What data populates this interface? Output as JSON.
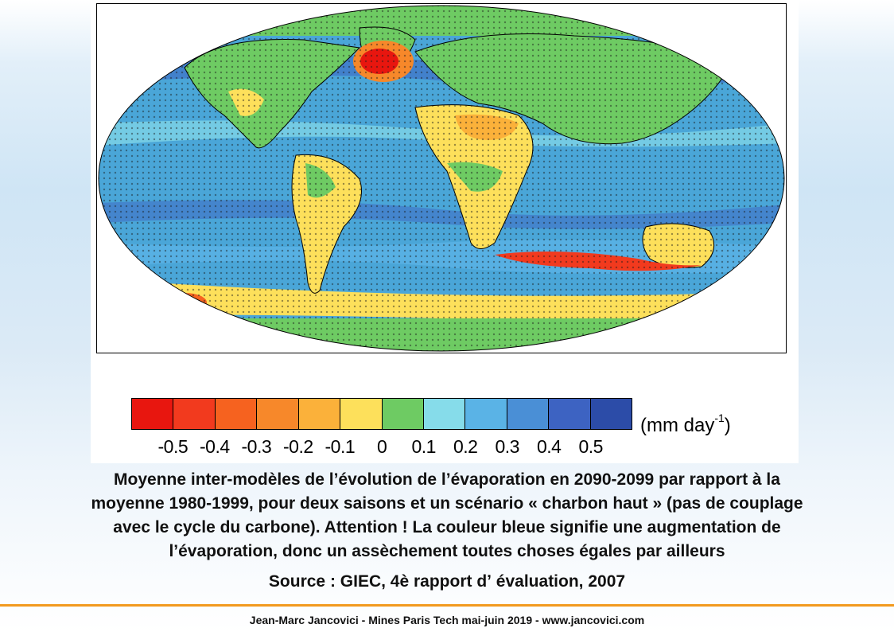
{
  "colorbar": {
    "colors": [
      "#e8160f",
      "#f23a1e",
      "#f6621f",
      "#f7882a",
      "#fbb13a",
      "#fde05b",
      "#6ecb63",
      "#86dcea",
      "#5ab3e6",
      "#4a8fd6",
      "#3d63c2",
      "#2c4ca8"
    ],
    "ticks": [
      "-0.5",
      "-0.4",
      "-0.3",
      "-0.2",
      "-0.1",
      "0",
      "0.1",
      "0.2",
      "0.3",
      "0.4",
      "0.5"
    ],
    "unit_main": "(mm day",
    "unit_exp": "-1",
    "unit_close": ")"
  },
  "map": {
    "ocean_color": "#4aa6d8",
    "land_color": "#6ecb63",
    "stipple_color": "#1a1a1a"
  },
  "caption": {
    "line1": "Moyenne inter-modèles de l’évolution de l’évaporation en 2090-2099 par rapport à la",
    "line2": "moyenne 1980-1999, pour deux saisons et un scénario « charbon haut » (pas de couplage",
    "line3": "avec le cycle du carbone). Attention ! La couleur bleue signifie une augmentation de",
    "line4": "l’évaporation, donc un assèchement toutes choses égales par ailleurs"
  },
  "source": "Source : GIEC, 4è rapport dʼ évaluation, 2007",
  "footer": "Jean-Marc Jancovici - Mines Paris Tech mai-juin 2019 - www.jancovici.com"
}
